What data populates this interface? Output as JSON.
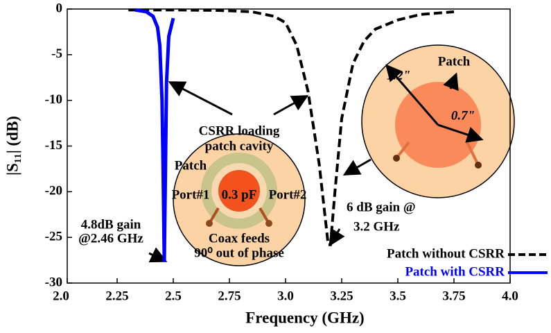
{
  "chart_data": {
    "type": "line",
    "xlabel": "Frequency (GHz)",
    "ylabel": "|S₁₁| (dB)",
    "xlim": [
      2.0,
      4.0
    ],
    "xticks": [
      {
        "value": 2,
        "label": "2.0"
      },
      2.25,
      2.5,
      2.75,
      {
        "value": 3,
        "label": "3.0"
      },
      3.25,
      3.5,
      3.75,
      {
        "value": 4,
        "label": "4.0"
      }
    ],
    "ylim": [
      -30,
      0
    ],
    "yticks": [
      -30,
      -25,
      -20,
      -15,
      -10,
      -5,
      0
    ],
    "legend": "lower right",
    "series": [
      {
        "name": "Patch without CSRR",
        "color": "#000000",
        "dash": true,
        "x": [
          2.3,
          2.5,
          2.7,
          2.85,
          2.95,
          3.0,
          3.05,
          3.1,
          3.15,
          3.19,
          3.2,
          3.22,
          3.25,
          3.3,
          3.35,
          3.4,
          3.5,
          3.6,
          3.75
        ],
        "values": [
          -0.1,
          -0.1,
          -0.15,
          -0.3,
          -0.8,
          -1.5,
          -4,
          -9,
          -17,
          -25.8,
          -25.8,
          -20,
          -12,
          -6,
          -3.5,
          -2.2,
          -1.2,
          -0.6,
          -0.3
        ]
      },
      {
        "name": "Patch with CSRR",
        "color": "#0000ff",
        "dash": false,
        "x": [
          2.33,
          2.38,
          2.41,
          2.43,
          2.44,
          2.45,
          2.455,
          2.46,
          2.465,
          2.47,
          2.48,
          2.5
        ],
        "values": [
          -0.1,
          -0.3,
          -0.8,
          -2,
          -4,
          -10,
          -18,
          -27.7,
          -18,
          -8,
          -3,
          -1
        ]
      }
    ],
    "annotations": [
      "4.8dB gain",
      "@2.46 GHz",
      "6 dB gain @",
      "3.2 GHz",
      "CSRR loading",
      "patch cavity",
      "Patch",
      "Port#1",
      "0.3 pF",
      "Port#2",
      "Coax feeds",
      "90⁰ out of phase",
      "1.2\"",
      "Patch",
      "0.7\""
    ]
  }
}
